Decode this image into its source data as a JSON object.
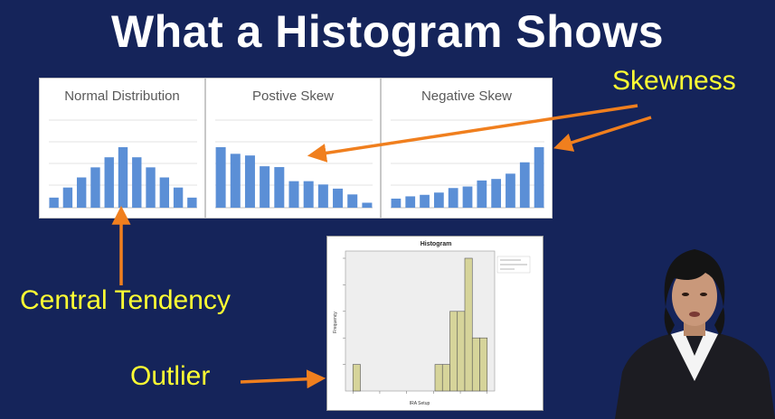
{
  "slide": {
    "title": "What a Histogram Shows"
  },
  "labels": {
    "skewness": "Skewness",
    "central_tendency": "Central Tendency",
    "outlier": "Outlier"
  },
  "colors": {
    "background": "#15245a",
    "bar": "#5b8fd6",
    "label": "#ffff33",
    "arrow": "#f07f1e",
    "hist_bar": "#d6d49a"
  },
  "chart_data": [
    {
      "type": "bar",
      "title": "Normal Distribution",
      "values": [
        1,
        2,
        3,
        4,
        5,
        6,
        5,
        4,
        3,
        2,
        1
      ]
    },
    {
      "type": "bar",
      "title": "Postive Skew",
      "values": [
        7.3,
        6.5,
        6.3,
        5.0,
        4.9,
        3.2,
        3.2,
        2.8,
        2.3,
        1.6,
        0.6
      ]
    },
    {
      "type": "bar",
      "title": "Negative Skew",
      "values": [
        1.2,
        1.5,
        1.7,
        2.0,
        2.6,
        2.8,
        3.6,
        3.8,
        4.5,
        6.0,
        8.0
      ]
    },
    {
      "type": "bar",
      "title": "Histogram",
      "xlabel": "IRA Setup",
      "ylabel": "Frequency",
      "values": [
        1,
        0,
        0,
        0,
        0,
        0,
        0,
        0,
        0,
        0,
        0,
        1,
        1,
        3,
        3,
        5,
        2,
        2
      ]
    }
  ]
}
